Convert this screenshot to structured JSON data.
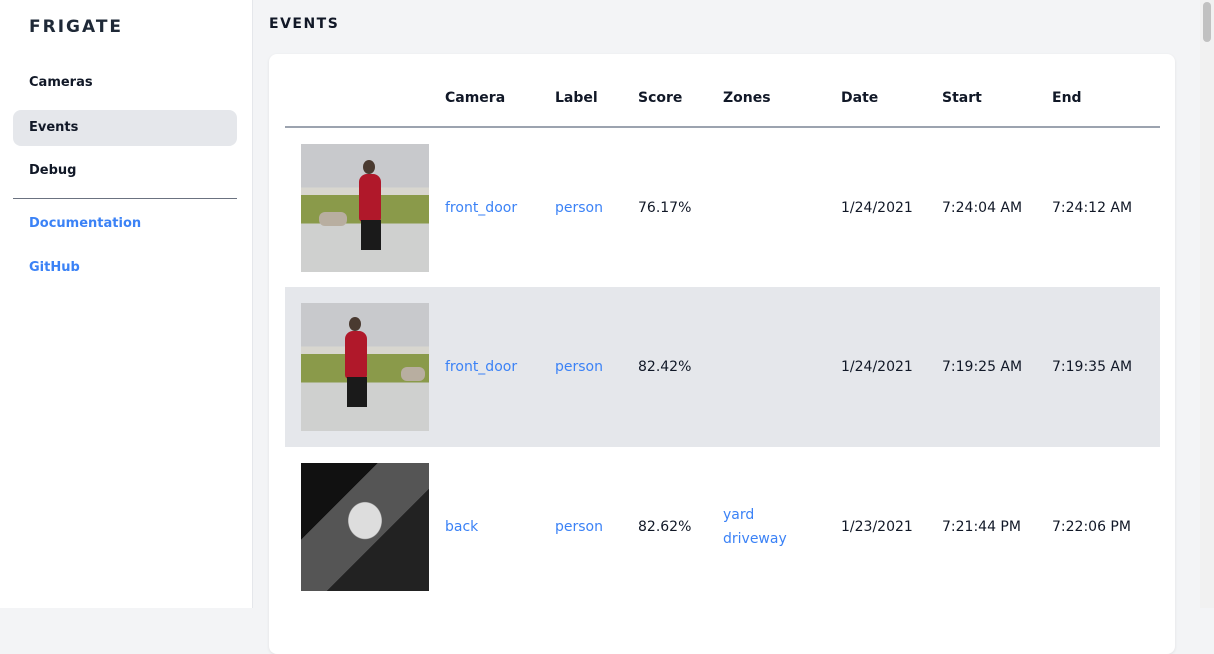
{
  "sidebar": {
    "brand": "FRIGATE",
    "items": [
      {
        "label": "Cameras"
      },
      {
        "label": "Events",
        "active": true
      },
      {
        "label": "Debug"
      }
    ],
    "links": [
      {
        "label": "Documentation"
      },
      {
        "label": "GitHub"
      }
    ]
  },
  "page": {
    "title": "EVENTS"
  },
  "table": {
    "headers": [
      "",
      "Camera",
      "Label",
      "Score",
      "Zones",
      "Date",
      "Start",
      "End"
    ],
    "rows": [
      {
        "camera": "front_door",
        "label": "person",
        "score": "76.17%",
        "zones": [
          "",
          ""
        ],
        "date": "1/24/2021",
        "start": "7:24:04 AM",
        "end": "7:24:12 AM"
      },
      {
        "camera": "front_door",
        "label": "person",
        "score": "82.42%",
        "zones": [
          "",
          ""
        ],
        "date": "1/24/2021",
        "start": "7:19:25 AM",
        "end": "7:19:35 AM"
      },
      {
        "camera": "back",
        "label": "person",
        "score": "82.62%",
        "zones": [
          "yard",
          "driveway"
        ],
        "date": "1/23/2021",
        "start": "7:21:44 PM",
        "end": "7:22:06 PM"
      }
    ]
  },
  "colors": {
    "accent": "#3b82f6",
    "active_bg": "#e5e7eb",
    "page_bg": "#f3f4f6"
  }
}
